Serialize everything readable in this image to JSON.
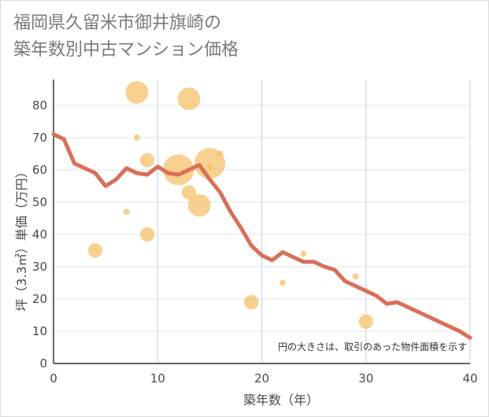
{
  "title_line1": "福岡県久留米市御井旗崎の",
  "title_line2": "築年数別中古マンション価格",
  "chart_data": {
    "type": "scatter",
    "title": "福岡県久留米市御井旗崎の築年数別中古マンション価格",
    "xlabel": "築年数（年）",
    "ylabel": "坪（3.3㎡）単価（万円）",
    "xlim": [
      0,
      40
    ],
    "ylim": [
      0,
      88
    ],
    "xticks": [
      0,
      10,
      20,
      30,
      40
    ],
    "yticks": [
      0,
      10,
      20,
      30,
      40,
      50,
      60,
      70,
      80
    ],
    "grid": true,
    "note": "円の大きさは、取引のあった物件面積を示す",
    "bubble_color": "#f5c26b",
    "line_color": "#d9705a",
    "bubbles": [
      {
        "x": 4,
        "y": 35,
        "size": 3
      },
      {
        "x": 7,
        "y": 47,
        "size": 1
      },
      {
        "x": 8,
        "y": 84,
        "size": 5
      },
      {
        "x": 8,
        "y": 70,
        "size": 1
      },
      {
        "x": 9,
        "y": 63,
        "size": 3
      },
      {
        "x": 9,
        "y": 40,
        "size": 3
      },
      {
        "x": 12,
        "y": 60,
        "size": 7
      },
      {
        "x": 13,
        "y": 82,
        "size": 5
      },
      {
        "x": 13,
        "y": 53,
        "size": 3
      },
      {
        "x": 14,
        "y": 49,
        "size": 5
      },
      {
        "x": 15,
        "y": 62,
        "size": 7
      },
      {
        "x": 15,
        "y": 61,
        "size": 1
      },
      {
        "x": 16,
        "y": 65,
        "size": 1
      },
      {
        "x": 19,
        "y": 19,
        "size": 3
      },
      {
        "x": 22,
        "y": 25,
        "size": 1
      },
      {
        "x": 24,
        "y": 34,
        "size": 1
      },
      {
        "x": 29,
        "y": 27,
        "size": 1
      },
      {
        "x": 30,
        "y": 13,
        "size": 3
      }
    ],
    "series": [
      {
        "x": [
          0,
          1,
          2,
          3,
          4,
          5,
          6,
          7,
          8,
          9,
          10,
          11,
          12,
          13,
          14,
          15,
          16,
          17,
          18,
          19,
          20,
          21,
          22,
          23,
          24,
          25,
          26,
          27,
          28,
          29,
          30,
          31,
          32,
          33,
          34,
          35,
          36,
          37,
          38,
          39,
          40
        ],
        "values": [
          71,
          69.5,
          62,
          60.5,
          59,
          55,
          57,
          60.5,
          59,
          58.5,
          61,
          59,
          58.5,
          60,
          61.5,
          57,
          53,
          47,
          42,
          36.5,
          33.5,
          32,
          34.5,
          33,
          31.5,
          31.5,
          30,
          29,
          25.5,
          24,
          22.5,
          21,
          18.5,
          19,
          17.5,
          16,
          14.5,
          13,
          11.5,
          10,
          8
        ]
      }
    ]
  }
}
